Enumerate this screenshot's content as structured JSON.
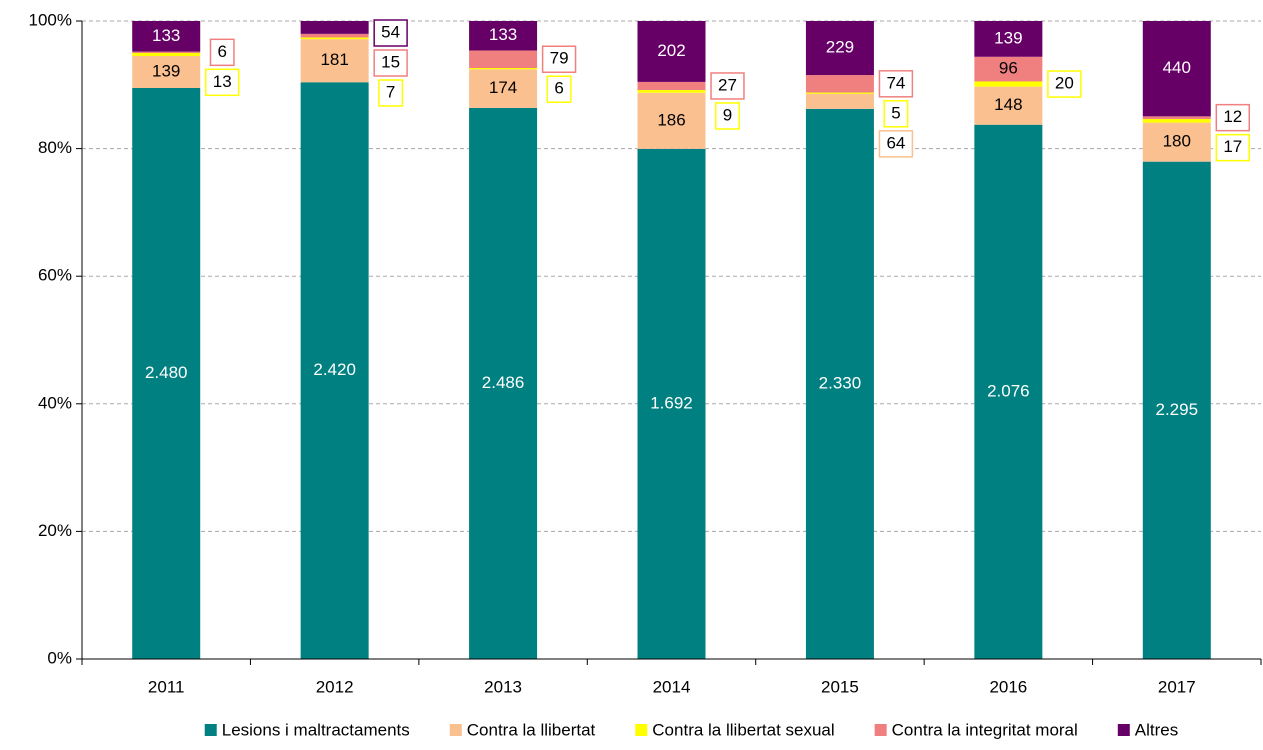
{
  "chart_data": {
    "type": "bar",
    "stacked": "percent",
    "categories": [
      "2011",
      "2012",
      "2013",
      "2014",
      "2015",
      "2016",
      "2017"
    ],
    "series": [
      {
        "name": "Lesions i maltractaments",
        "color": "#008080",
        "values": [
          2480,
          2420,
          2486,
          1692,
          2330,
          2076,
          2295
        ],
        "value_labels": [
          "2.480",
          "2.420",
          "2.486",
          "1.692",
          "2.330",
          "2.076",
          "2.295"
        ]
      },
      {
        "name": "Contra la llibertat",
        "color": "#fac090",
        "values": [
          139,
          181,
          174,
          186,
          64,
          148,
          180
        ]
      },
      {
        "name": "Contra la llibertat sexual",
        "color": "#ffff00",
        "values": [
          13,
          7,
          6,
          9,
          5,
          20,
          17
        ]
      },
      {
        "name": "Contra la integritat moral",
        "color": "#f08080",
        "values": [
          6,
          15,
          79,
          27,
          74,
          96,
          12
        ]
      },
      {
        "name": "Altres",
        "color": "#660066",
        "values": [
          133,
          54,
          133,
          202,
          229,
          139,
          440
        ]
      }
    ],
    "ylim": [
      0,
      100
    ],
    "yticks": [
      {
        "value": 0,
        "label": "0%"
      },
      {
        "value": 20,
        "label": "20%"
      },
      {
        "value": 40,
        "label": "40%"
      },
      {
        "value": 60,
        "label": "60%"
      },
      {
        "value": 80,
        "label": "80%"
      },
      {
        "value": 100,
        "label": "100%"
      }
    ],
    "grid": true,
    "legend": "bottom"
  }
}
